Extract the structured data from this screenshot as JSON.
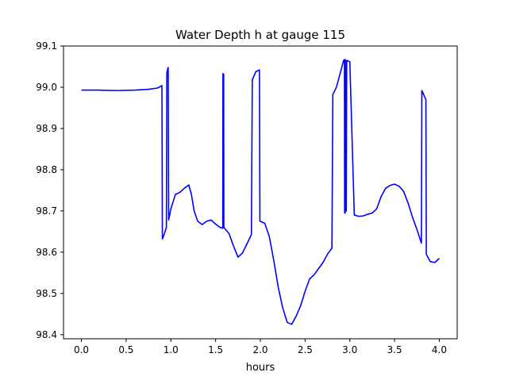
{
  "chart_data": {
    "type": "line",
    "title": "Water Depth h at gauge 115",
    "xlabel": "hours",
    "ylabel": "",
    "xlim": [
      -0.2,
      4.2
    ],
    "ylim": [
      98.39,
      99.1
    ],
    "xticks": [
      "0.0",
      "0.5",
      "1.0",
      "1.5",
      "2.0",
      "2.5",
      "3.0",
      "3.5",
      "4.0"
    ],
    "yticks": [
      "98.4",
      "98.5",
      "98.6",
      "98.7",
      "98.8",
      "98.9",
      "99.0",
      "99.1"
    ],
    "grid": false,
    "series": [
      {
        "color": "#0000ff",
        "x": [
          0.0,
          0.2,
          0.4,
          0.6,
          0.75,
          0.85,
          0.9,
          0.905,
          0.92,
          0.95,
          0.955,
          0.965,
          0.97,
          0.975,
          1.0,
          1.05,
          1.1,
          1.15,
          1.2,
          1.23,
          1.26,
          1.3,
          1.35,
          1.4,
          1.45,
          1.5,
          1.55,
          1.58,
          1.582,
          1.59,
          1.592,
          1.6,
          1.65,
          1.7,
          1.75,
          1.8,
          1.85,
          1.9,
          1.91,
          1.95,
          1.99,
          1.995,
          2.0,
          2.05,
          2.1,
          2.15,
          2.2,
          2.25,
          2.3,
          2.35,
          2.4,
          2.45,
          2.5,
          2.55,
          2.6,
          2.65,
          2.7,
          2.75,
          2.8,
          2.81,
          2.85,
          2.9,
          2.93,
          2.94,
          2.942,
          2.945,
          2.948,
          2.95,
          2.952,
          2.96,
          2.965,
          2.97,
          2.975,
          3.0,
          3.05,
          3.1,
          3.15,
          3.2,
          3.25,
          3.3,
          3.35,
          3.4,
          3.45,
          3.5,
          3.55,
          3.6,
          3.65,
          3.7,
          3.75,
          3.8,
          3.805,
          3.85,
          3.855,
          3.9,
          3.95,
          4.0
        ],
        "y": [
          98.993,
          98.993,
          98.992,
          98.993,
          98.995,
          98.998,
          99.004,
          98.632,
          98.64,
          98.66,
          99.035,
          99.045,
          99.048,
          98.678,
          98.705,
          98.74,
          98.745,
          98.755,
          98.763,
          98.74,
          98.7,
          98.675,
          98.667,
          98.675,
          98.678,
          98.668,
          98.66,
          98.658,
          99.033,
          99.032,
          98.66,
          98.658,
          98.645,
          98.615,
          98.588,
          98.598,
          98.62,
          98.643,
          99.018,
          99.038,
          99.042,
          98.675,
          98.675,
          98.67,
          98.638,
          98.58,
          98.515,
          98.465,
          98.43,
          98.425,
          98.445,
          98.47,
          98.505,
          98.535,
          98.545,
          98.56,
          98.575,
          98.595,
          98.61,
          98.982,
          99.0,
          99.04,
          99.065,
          99.067,
          98.695,
          99.067,
          98.695,
          99.066,
          98.7,
          98.7,
          99.065,
          99.065,
          99.064,
          99.062,
          98.69,
          98.687,
          98.688,
          98.692,
          98.695,
          98.705,
          98.735,
          98.755,
          98.762,
          98.765,
          98.76,
          98.748,
          98.72,
          98.685,
          98.655,
          98.622,
          98.992,
          98.97,
          98.595,
          98.577,
          98.575,
          98.585
        ]
      }
    ]
  }
}
